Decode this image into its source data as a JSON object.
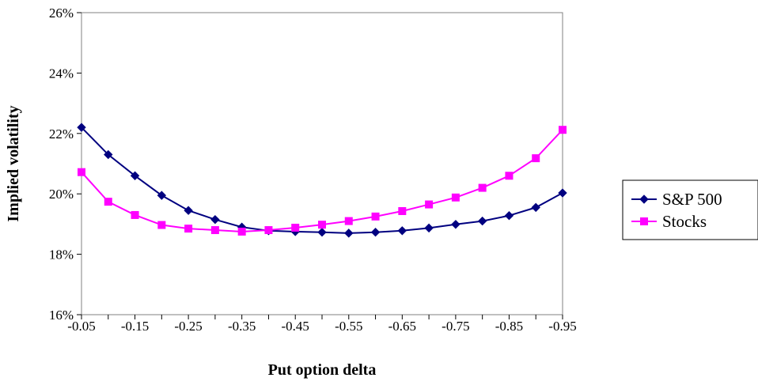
{
  "chart_data": {
    "type": "line",
    "title": "",
    "xlabel": "Put option delta",
    "ylabel": "Implied volatility",
    "x": [
      -0.05,
      -0.1,
      -0.15,
      -0.2,
      -0.25,
      -0.3,
      -0.35,
      -0.4,
      -0.45,
      -0.5,
      -0.55,
      -0.6,
      -0.65,
      -0.7,
      -0.75,
      -0.8,
      -0.85,
      -0.9,
      -0.95
    ],
    "x_tick_labels": [
      "-0.05",
      "-0.15",
      "-0.25",
      "-0.35",
      "-0.45",
      "-0.55",
      "-0.65",
      "-0.75",
      "-0.85",
      "-0.95"
    ],
    "y_tick_labels": [
      "16%",
      "18%",
      "20%",
      "22%",
      "24%",
      "26%"
    ],
    "ylim": [
      16,
      26
    ],
    "y_unit": "%",
    "grid": false,
    "legend_position": "right",
    "series": [
      {
        "name": "S&P 500",
        "color": "#000080",
        "marker": "diamond",
        "values": [
          22.2,
          21.3,
          20.6,
          19.95,
          19.45,
          19.15,
          18.9,
          18.78,
          18.75,
          18.73,
          18.7,
          18.73,
          18.78,
          18.87,
          18.99,
          19.1,
          19.28,
          19.55,
          20.03
        ]
      },
      {
        "name": "Stocks",
        "color": "#ff00ff",
        "marker": "square",
        "values": [
          20.72,
          19.74,
          19.3,
          18.97,
          18.85,
          18.8,
          18.75,
          18.8,
          18.88,
          18.98,
          19.1,
          19.25,
          19.43,
          19.65,
          19.88,
          20.2,
          20.6,
          21.18,
          22.12
        ]
      }
    ]
  }
}
